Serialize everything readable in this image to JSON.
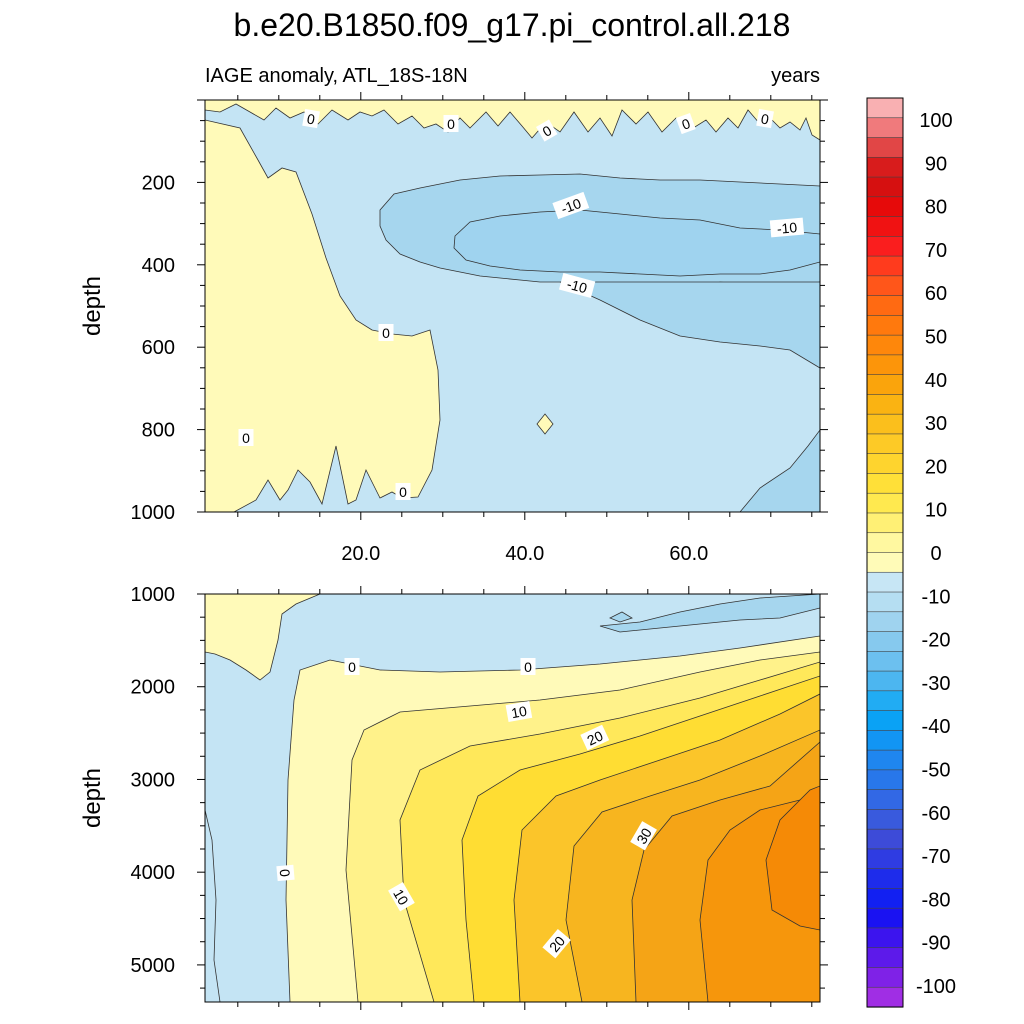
{
  "title": "b.e20.B1850.f09_g17.pi_control.all.218",
  "subtitle_left": "IAGE anomaly, ATL_18S-18N",
  "subtitle_right": "years",
  "colors": {
    "line": "#333333",
    "c_m10": "#c4e4f4",
    "c_m20": "#a6d6ee",
    "c_0": "#fffab9",
    "c_10": "#fff28a",
    "c_15": "#ffe85a",
    "c_20": "#ffdd33",
    "c_25": "#fbc52a",
    "c_30": "#f7b51f",
    "c_35": "#f5a416",
    "c_40": "#f6960c"
  },
  "colorbar": {
    "levels": [
      "100",
      "90",
      "80",
      "70",
      "60",
      "50",
      "40",
      "30",
      "20",
      "10",
      "0",
      "-10",
      "-20",
      "-30",
      "-40",
      "-50",
      "-60",
      "-70",
      "-80",
      "-90",
      "-100"
    ],
    "colors": [
      "#f9b0b2",
      "#f07a7c",
      "#e14646",
      "#d81c1c",
      "#d61010",
      "#e60a0a",
      "#f01212",
      "#fa1e1e",
      "#ff3b1d",
      "#ff561a",
      "#ff6a12",
      "#ff790d",
      "#fe870b",
      "#fc950a",
      "#faa40c",
      "#fab312",
      "#fbbf1c",
      "#fdca26",
      "#fed42e",
      "#ffe038",
      "#ffe94f",
      "#fff075",
      "#fff8a0",
      "#fffbb8",
      "#c7e6f5",
      "#b5def2",
      "#9fd3ef",
      "#86c9ee",
      "#6cc0ef",
      "#4cb6f0",
      "#21acf3",
      "#0aa2f5",
      "#1295f4",
      "#1f86ef",
      "#2877ea",
      "#3268e5",
      "#395add",
      "#3d4bd8",
      "#2f3ce2",
      "#1e2ceb",
      "#1220f2",
      "#1a12f2",
      "#3c14ee",
      "#5d1aea",
      "#7f22e7",
      "#a02ee4"
    ]
  },
  "chart_data": [
    {
      "type": "heatmap",
      "panel": "upper",
      "xlabel": "",
      "ylabel": "depth",
      "xlim": [
        1,
        76
      ],
      "ylim": [
        1000,
        0
      ],
      "xticks": [
        "20.0",
        "40.0",
        "60.0"
      ],
      "yticks": [
        "200",
        "400",
        "600",
        "800",
        "1000"
      ],
      "contour_labels": [
        "0",
        "0",
        "0",
        "0",
        "0",
        "-10",
        "-10",
        "-10",
        "0",
        "0",
        "0"
      ],
      "regions": [
        {
          "level": "-10..0",
          "x": [
            1,
            76
          ],
          "y": [
            0,
            1000
          ]
        },
        {
          "level": "0..10",
          "x": [
            6,
            30
          ],
          "y": [
            0,
            1000
          ]
        },
        {
          "level": "-20..-10",
          "x": [
            23,
            76
          ],
          "y": [
            180,
            640
          ]
        },
        {
          "level": "-20..-10",
          "x": [
            33,
            76
          ],
          "y": [
            260,
            450
          ]
        }
      ]
    },
    {
      "type": "heatmap",
      "panel": "lower",
      "xlabel": "",
      "ylabel": "depth",
      "xlim": [
        1,
        76
      ],
      "ylim": [
        5400,
        1000
      ],
      "xticks": [
        "20.0",
        "40.0",
        "60.0"
      ],
      "yticks": [
        "1000",
        "2000",
        "3000",
        "4000",
        "5000"
      ],
      "contour_labels": [
        "0",
        "0",
        "10",
        "20",
        "30",
        "0",
        "10",
        "20"
      ],
      "regions": [
        {
          "level": "-10..0",
          "x": [
            1,
            76
          ],
          "y": [
            1000,
            5400
          ]
        },
        {
          "level": "0..10",
          "x": [
            11,
            76
          ],
          "y": [
            1700,
            5400
          ]
        },
        {
          "level": "10..15",
          "x": [
            20,
            76
          ],
          "y": [
            1800,
            5400
          ]
        },
        {
          "level": "15..20",
          "x": [
            30,
            76
          ],
          "y": [
            1900,
            5400
          ]
        },
        {
          "level": "20..25",
          "x": [
            38,
            76
          ],
          "y": [
            2000,
            5400
          ]
        },
        {
          "level": "25..30",
          "x": [
            56,
            76
          ],
          "y": [
            2300,
            5400
          ]
        },
        {
          "level": "30..35",
          "x": [
            64,
            76
          ],
          "y": [
            2600,
            5400
          ]
        },
        {
          "level": "35..40",
          "x": [
            71,
            76
          ],
          "y": [
            3200,
            4800
          ]
        }
      ]
    }
  ]
}
